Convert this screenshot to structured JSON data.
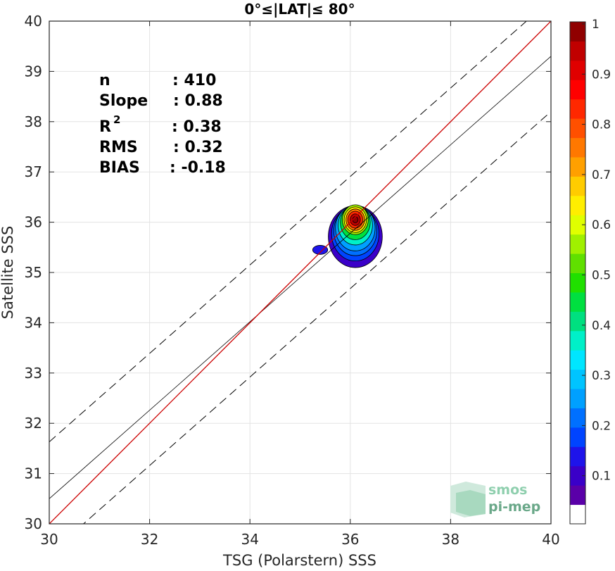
{
  "chart_data": {
    "type": "scatter-density",
    "title": "0°≤|LAT|≤ 80°",
    "xlabel": "TSG (Polarstern) SSS",
    "ylabel": "Satellite SSS",
    "xlim": [
      30,
      40
    ],
    "ylim": [
      30,
      40
    ],
    "xticks": [
      "30",
      "32",
      "34",
      "36",
      "38",
      "40"
    ],
    "yticks": [
      "30",
      "31",
      "32",
      "33",
      "34",
      "35",
      "36",
      "37",
      "38",
      "39",
      "40"
    ],
    "grid": true,
    "stats": {
      "n_label": "n",
      "n_value": ": 410",
      "slope_label": "Slope",
      "slope_value": ": 0.88",
      "r2_label": "R",
      "r2_sup": "2",
      "r2_value": ": 0.38",
      "rms_label": "RMS",
      "rms_value": ": 0.32",
      "bias_label": "BIAS",
      "bias_value": ": -0.18"
    },
    "lines": {
      "identity": {
        "slope": 1,
        "intercept": 0,
        "color": "#cc0000"
      },
      "regression": {
        "slope": 0.88,
        "intercept": 4.1,
        "color": "#000000"
      },
      "upper_bound": {
        "slope": 0.88,
        "intercept": 5.23,
        "style": "dashed"
      },
      "lower_bound": {
        "slope": 0.88,
        "intercept": 3.0,
        "style": "dashed"
      }
    },
    "density": {
      "peak": [
        36.1,
        36.05
      ],
      "sigma_x": 0.22,
      "sigma_y": 0.35,
      "lobe": {
        "center": [
          35.4,
          35.45
        ],
        "rx": 0.15,
        "ry": 0.09
      }
    },
    "colorbar": {
      "ticks": [
        "0.1",
        "0.2",
        "0.3",
        "0.4",
        "0.5",
        "0.6",
        "0.7",
        "0.8",
        "0.9",
        "1"
      ],
      "colors": [
        "#ffffff",
        "#5a00a8",
        "#3a00c8",
        "#1e14ea",
        "#0044ff",
        "#0070ff",
        "#00a0ff",
        "#00c4ff",
        "#00e6ff",
        "#00f0c8",
        "#00e080",
        "#00e040",
        "#20e000",
        "#60e000",
        "#a0f000",
        "#e0ff00",
        "#ffee00",
        "#ffcc00",
        "#ffa000",
        "#ff7800",
        "#ff5000",
        "#ff2800",
        "#ff0000",
        "#e00000",
        "#c00000",
        "#900000"
      ]
    }
  },
  "logo": {
    "line1": "smos",
    "line2": "pi-mep"
  }
}
